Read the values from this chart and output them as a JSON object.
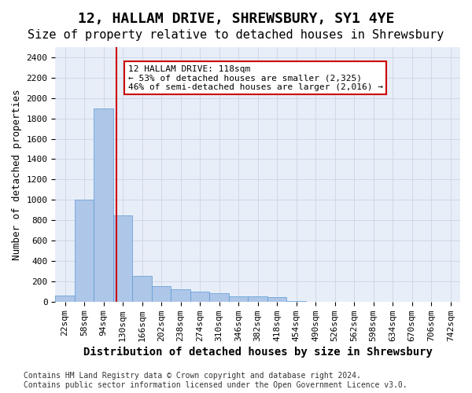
{
  "title": "12, HALLAM DRIVE, SHREWSBURY, SY1 4YE",
  "subtitle": "Size of property relative to detached houses in Shrewsbury",
  "xlabel": "Distribution of detached houses by size in Shrewsbury",
  "ylabel": "Number of detached properties",
  "bin_labels": [
    "22sqm",
    "58sqm",
    "94sqm",
    "130sqm",
    "166sqm",
    "202sqm",
    "238sqm",
    "274sqm",
    "310sqm",
    "346sqm",
    "382sqm",
    "418sqm",
    "454sqm",
    "490sqm",
    "526sqm",
    "562sqm",
    "598sqm",
    "634sqm",
    "670sqm",
    "706sqm",
    "742sqm"
  ],
  "bar_values": [
    60,
    1000,
    1900,
    850,
    250,
    150,
    120,
    100,
    85,
    50,
    50,
    40,
    5,
    0,
    0,
    0,
    0,
    0,
    0,
    0,
    0
  ],
  "bar_color": "#aec6e8",
  "bar_edge_color": "#5b9bd5",
  "grid_color": "#d0d8e8",
  "background_color": "#e8eef8",
  "vline_color": "#cc0000",
  "annotation_text": "12 HALLAM DRIVE: 118sqm\n← 53% of detached houses are smaller (2,325)\n46% of semi-detached houses are larger (2,016) →",
  "annotation_box_color": "#ffffff",
  "annotation_box_edge": "#cc0000",
  "ylim": [
    0,
    2500
  ],
  "yticks": [
    0,
    200,
    400,
    600,
    800,
    1000,
    1200,
    1400,
    1600,
    1800,
    2000,
    2200,
    2400
  ],
  "footer": "Contains HM Land Registry data © Crown copyright and database right 2024.\nContains public sector information licensed under the Open Government Licence v3.0.",
  "title_fontsize": 13,
  "subtitle_fontsize": 11,
  "axis_label_fontsize": 9,
  "tick_fontsize": 8,
  "annotation_fontsize": 8,
  "footer_fontsize": 7
}
